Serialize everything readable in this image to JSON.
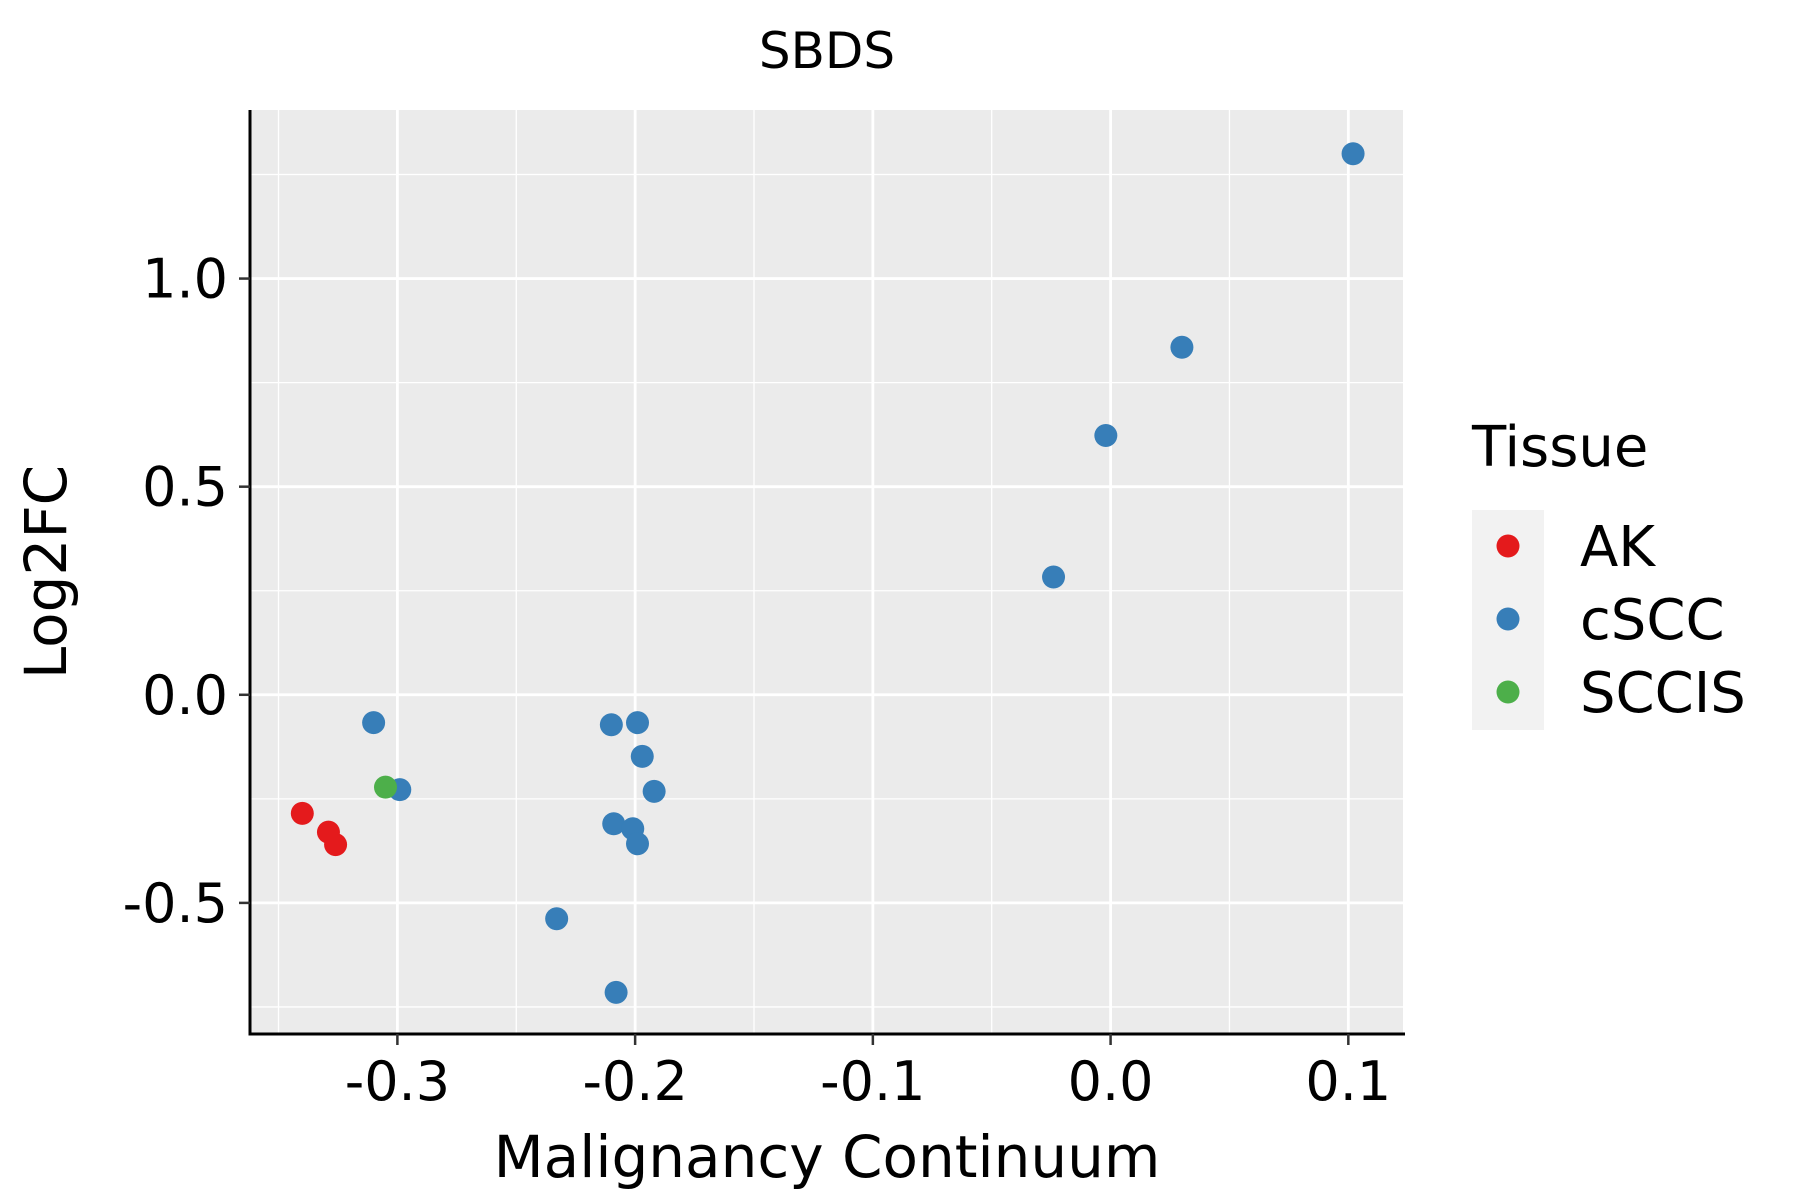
{
  "chart_data": {
    "type": "scatter",
    "title": "SBDS",
    "xlabel": "Malignancy Continuum",
    "ylabel": "Log2FC",
    "xlim": [
      -0.362,
      0.123
    ],
    "ylim": [
      -0.815,
      1.405
    ],
    "x_ticks": [
      -0.3,
      -0.2,
      -0.1,
      0.0,
      0.1
    ],
    "x_tick_labels": [
      "-0.3",
      "-0.2",
      "-0.1",
      "0.0",
      "0.1"
    ],
    "y_ticks": [
      -0.5,
      0.0,
      0.5,
      1.0
    ],
    "y_tick_labels": [
      "-0.5",
      "0.0",
      "0.5",
      "1.0"
    ],
    "x_minor": [
      -0.35,
      -0.25,
      -0.15,
      -0.05,
      0.05
    ],
    "y_minor": [
      -0.75,
      -0.25,
      0.25,
      0.75,
      1.25
    ],
    "grid": true,
    "legend": {
      "title": "Tissue",
      "position": "right",
      "entries": [
        {
          "label": "AK",
          "color": "#E41A1C"
        },
        {
          "label": "cSCC",
          "color": "#377EB8"
        },
        {
          "label": "SCCIS",
          "color": "#4DAF4A"
        }
      ]
    },
    "series": [
      {
        "name": "AK",
        "color": "#E41A1C",
        "points": [
          {
            "x": -0.34,
            "y": -0.285
          },
          {
            "x": -0.329,
            "y": -0.33
          },
          {
            "x": -0.326,
            "y": -0.36
          }
        ]
      },
      {
        "name": "cSCC",
        "color": "#377EB8",
        "points": [
          {
            "x": 0.102,
            "y": 1.3
          },
          {
            "x": 0.03,
            "y": 0.835
          },
          {
            "x": -0.002,
            "y": 0.623
          },
          {
            "x": -0.024,
            "y": 0.283
          },
          {
            "x": -0.31,
            "y": -0.067
          },
          {
            "x": -0.299,
            "y": -0.228
          },
          {
            "x": -0.21,
            "y": -0.072
          },
          {
            "x": -0.199,
            "y": -0.067
          },
          {
            "x": -0.197,
            "y": -0.148
          },
          {
            "x": -0.192,
            "y": -0.232
          },
          {
            "x": -0.209,
            "y": -0.31
          },
          {
            "x": -0.201,
            "y": -0.322
          },
          {
            "x": -0.199,
            "y": -0.358
          },
          {
            "x": -0.233,
            "y": -0.538
          },
          {
            "x": -0.208,
            "y": -0.715
          }
        ]
      },
      {
        "name": "SCCIS",
        "color": "#4DAF4A",
        "points": [
          {
            "x": -0.305,
            "y": -0.222
          }
        ]
      }
    ]
  }
}
